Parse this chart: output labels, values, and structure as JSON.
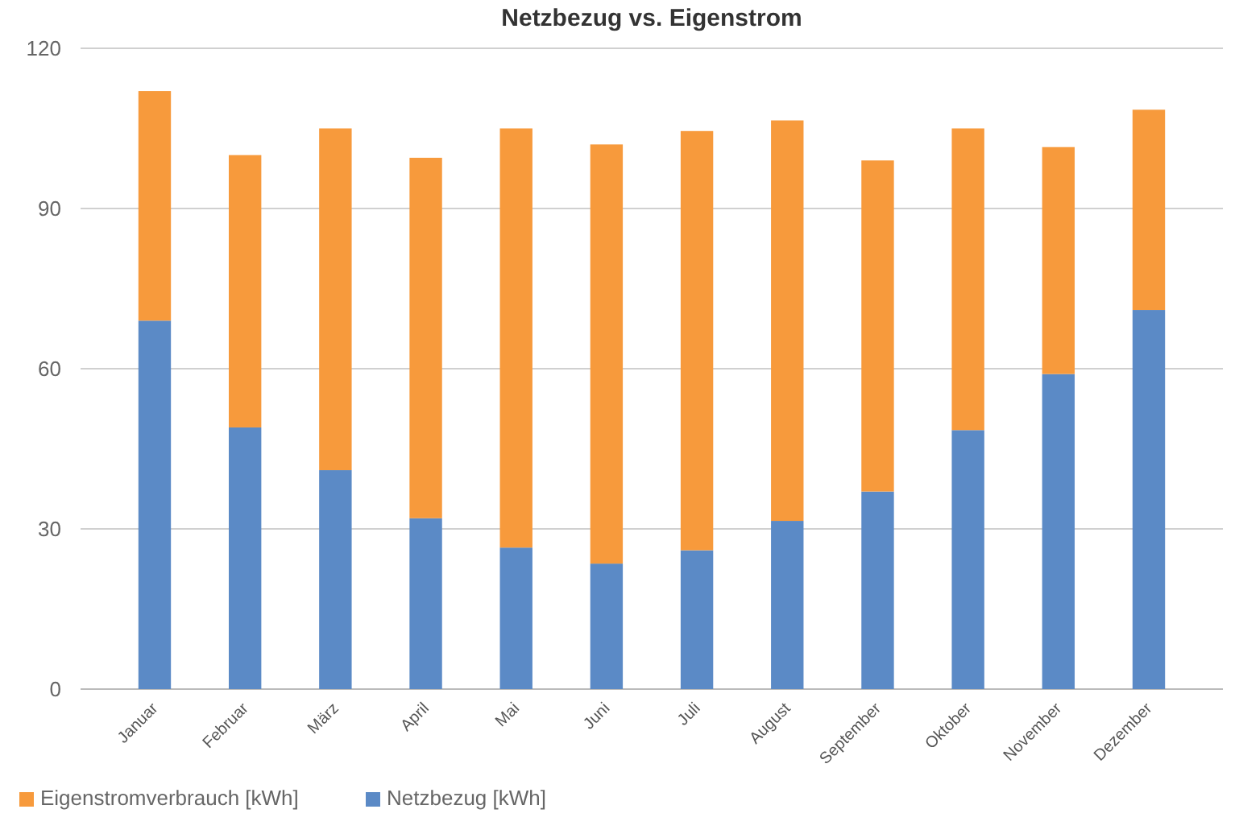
{
  "chart_data": {
    "type": "bar",
    "title": "Netzbezug vs. Eigenstrom",
    "stacked": true,
    "categories": [
      "Januar",
      "Februar",
      "März",
      "April",
      "Mai",
      "Juni",
      "Juli",
      "August",
      "September",
      "Oktober",
      "November",
      "Dezember"
    ],
    "series": [
      {
        "name": "Netzbezug [kWh]",
        "color": "#5b8ac6",
        "values": [
          69,
          49,
          41,
          32,
          26.5,
          23.5,
          26,
          31.5,
          37,
          48.5,
          59,
          71
        ]
      },
      {
        "name": "Eigenstromverbrauch [kWh]",
        "color": "#f79a3c",
        "values": [
          43,
          51,
          64,
          67.5,
          78.5,
          78.5,
          78.5,
          75,
          62,
          56.5,
          42.5,
          37.5
        ]
      }
    ],
    "ylim": [
      0,
      120
    ],
    "yticks": [
      0,
      30,
      60,
      90,
      120
    ],
    "grid": "y",
    "legend": "bottom left"
  }
}
